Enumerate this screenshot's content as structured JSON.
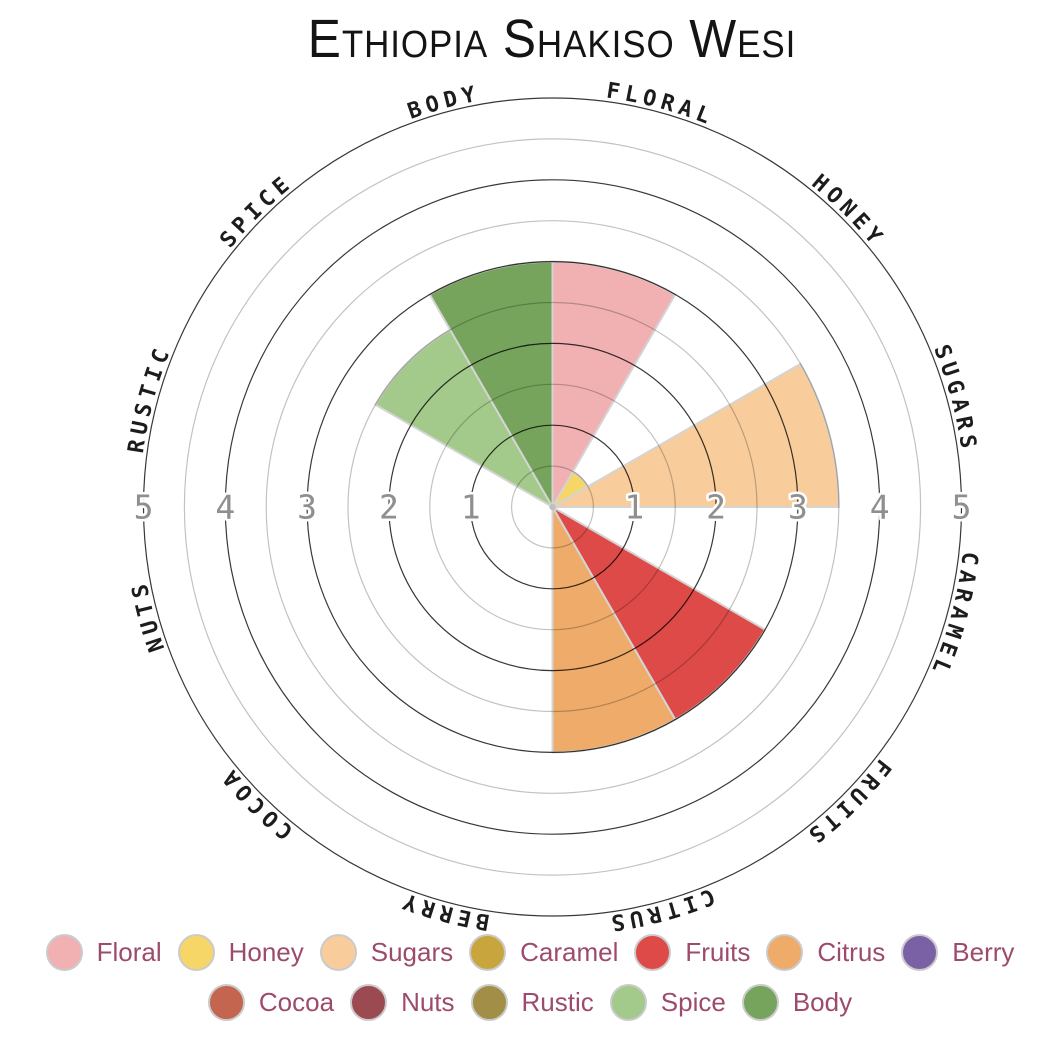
{
  "title": "Ethiopia Shakiso Wesi",
  "chart_data": {
    "type": "polar-bar",
    "title": "Ethiopia Shakiso Wesi",
    "categories": [
      "Floral",
      "Honey",
      "Sugars",
      "Caramel",
      "Fruits",
      "Citrus",
      "Berry",
      "Cocoa",
      "Nuts",
      "Rustic",
      "Spice",
      "Body"
    ],
    "values": [
      3,
      0.5,
      3.5,
      0,
      3,
      3,
      0,
      0,
      0,
      0,
      2.5,
      3
    ],
    "colors": {
      "Floral": "#f1b1b3",
      "Honey": "#f6d666",
      "Sugars": "#f8cd9b",
      "Caramel": "#c9a53d",
      "Fruits": "#dd4a48",
      "Citrus": "#eeab6a",
      "Berry": "#7a61a6",
      "Cocoa": "#c3654f",
      "Nuts": "#9b4a52",
      "Rustic": "#a28e46",
      "Spice": "#a3ca8b",
      "Body": "#77a45d"
    },
    "sector_span_degrees": 30,
    "start_bearing_degrees": 0,
    "radial_axis": {
      "min": 0,
      "max": 5,
      "tick_labels": [
        "1",
        "2",
        "3",
        "4",
        "5"
      ],
      "tick_sides": [
        "left",
        "right"
      ],
      "minor_ring_step": 0.5
    },
    "grid": "concentric circles every 0.5 units, darker at integers",
    "legend_position": "bottom"
  },
  "legend": {
    "rows": [
      [
        "Floral",
        "Honey",
        "Sugars",
        "Caramel",
        "Fruits",
        "Citrus",
        "Berry"
      ],
      [
        "Cocoa",
        "Nuts",
        "Rustic",
        "Spice",
        "Body"
      ]
    ]
  },
  "palette": {
    "legend_text": "#9d4b6d",
    "category_label": "#1c1c1c",
    "tick_label": "#8f8f8f",
    "grid_color": "#000000",
    "wedge_stroke": "#d4d4d4",
    "title_text": "#141414",
    "swatch_border": "#cbcbcb",
    "background": "#ffffff"
  }
}
